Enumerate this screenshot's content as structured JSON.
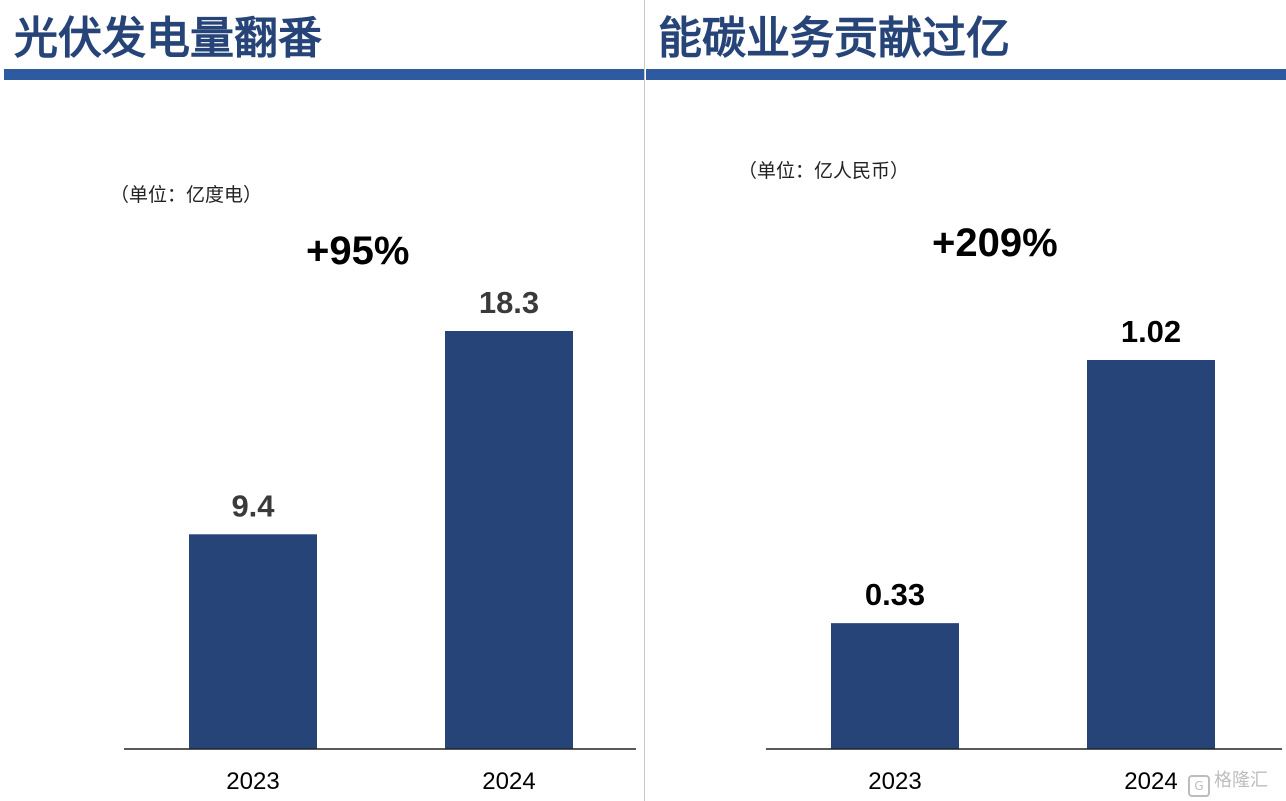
{
  "colors": {
    "bar": "#264478",
    "heading": "#264478",
    "rule": "#2e5aa0",
    "value_label_left": "#3a3a3a",
    "value_label_right": "#000000"
  },
  "panels": [
    {
      "heading": "光伏发电量翻番",
      "unit": "（单位：亿度电）",
      "growth": "+95%"
    },
    {
      "heading": "能碳业务贡献过亿",
      "unit": "（单位：亿人民币）",
      "growth": "+209%"
    }
  ],
  "chart_data": [
    {
      "type": "bar",
      "title": "光伏发电量翻番",
      "categories": [
        "2023",
        "2024"
      ],
      "values": [
        9.4,
        18.3
      ],
      "value_labels": [
        "9.4",
        "18.3"
      ],
      "ylabel": "（单位：亿度电）",
      "ylim": [
        0,
        18.3
      ],
      "annotation": "+95%",
      "grid": false
    },
    {
      "type": "bar",
      "title": "能碳业务贡献过亿",
      "categories": [
        "2023",
        "2024"
      ],
      "values": [
        0.33,
        1.02
      ],
      "value_labels": [
        "0.33",
        "1.02"
      ],
      "ylabel": "（单位：亿人民币）",
      "ylim": [
        0,
        1.02
      ],
      "annotation": "+209%",
      "grid": false
    }
  ],
  "watermark": {
    "icon": "gelonghui-logo-icon",
    "text": "格隆汇"
  }
}
